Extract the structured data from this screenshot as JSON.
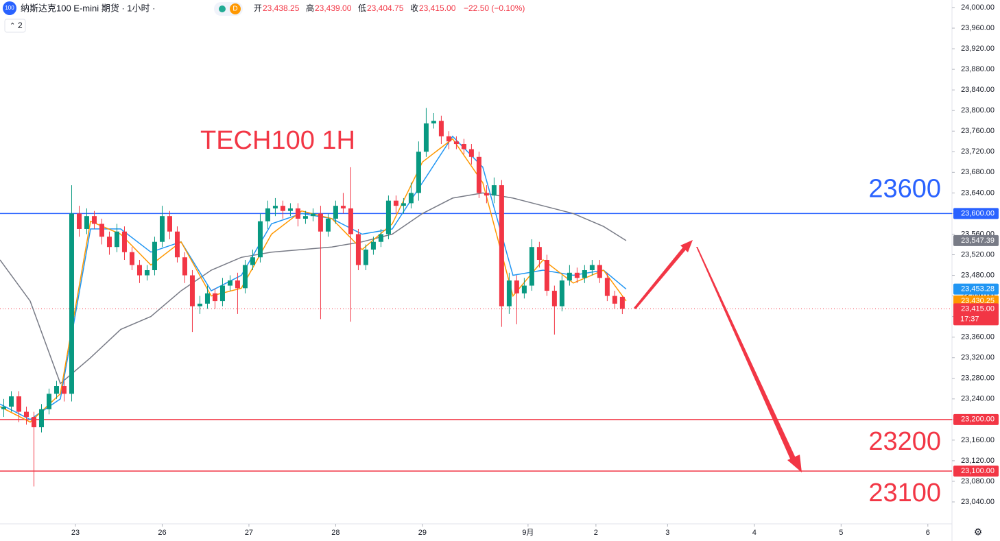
{
  "header": {
    "logo": "100",
    "title": "纳斯达克100 E-mini 期货 · 1小时 ·",
    "badge": "D",
    "ohlc": [
      {
        "key": "开",
        "value": "23,438.25"
      },
      {
        "key": "高",
        "value": "23,439.00"
      },
      {
        "key": "低",
        "value": "23,404.75"
      },
      {
        "key": "收",
        "value": "23,415.00"
      }
    ],
    "change": "−22.50 (−0.10%)",
    "indicators": "2"
  },
  "chart_data": {
    "type": "candlestick",
    "title": "TECH100 1H",
    "up_color": "#089981",
    "down_color": "#f23645",
    "x": [
      1,
      3,
      5,
      7,
      9,
      11,
      13,
      15,
      17,
      19,
      21,
      23,
      25,
      27,
      29,
      31,
      33,
      35,
      37,
      39,
      41,
      43,
      45,
      47,
      49,
      51,
      53,
      55,
      57,
      59,
      61,
      63,
      65,
      67,
      69,
      71,
      73,
      75,
      77,
      79,
      81,
      83,
      85,
      87,
      89,
      91,
      93,
      95,
      97,
      99,
      101,
      103,
      105,
      107,
      109,
      111,
      113,
      115,
      117,
      119,
      121,
      123,
      125,
      127,
      129,
      131,
      133,
      135,
      137,
      139,
      141,
      143,
      145,
      147,
      149,
      151,
      153,
      155,
      157,
      159,
      161,
      163,
      165
    ],
    "open": [
      23220,
      23225,
      23245,
      23215,
      23205,
      23185,
      23220,
      23250,
      23265,
      23250,
      23600,
      23570,
      23595,
      23580,
      23555,
      23535,
      23565,
      23525,
      23500,
      23480,
      23490,
      23545,
      23595,
      23565,
      23515,
      23480,
      23420,
      23425,
      23445,
      23430,
      23460,
      23470,
      23455,
      23500,
      23515,
      23585,
      23610,
      23615,
      23605,
      23610,
      23590,
      23595,
      23600,
      23565,
      23590,
      23615,
      23610,
      23560,
      23500,
      23530,
      23545,
      23560,
      23625,
      23615,
      23620,
      23640,
      23720,
      23775,
      23780,
      23750,
      23740,
      23735,
      23725,
      23710,
      23640,
      23635,
      23655,
      23420,
      23470,
      23445,
      23460,
      23535,
      23510,
      23450,
      23420,
      23470,
      23485,
      23475,
      23490,
      23500,
      23475,
      23440,
      23438.25
    ],
    "high": [
      23240,
      23255,
      23255,
      23225,
      23215,
      23230,
      23260,
      23275,
      23275,
      23655,
      23615,
      23610,
      23605,
      23590,
      23565,
      23580,
      23575,
      23535,
      23510,
      23500,
      23555,
      23615,
      23605,
      23575,
      23525,
      23490,
      23440,
      23460,
      23455,
      23475,
      23480,
      23485,
      23510,
      23530,
      23600,
      23625,
      23630,
      23625,
      23620,
      23620,
      23605,
      23610,
      23615,
      23600,
      23625,
      23640,
      23690,
      23570,
      23540,
      23555,
      23570,
      23635,
      23635,
      23630,
      23660,
      23740,
      23805,
      23795,
      23790,
      23760,
      23750,
      23745,
      23735,
      23720,
      23655,
      23670,
      23665,
      23485,
      23480,
      23475,
      23550,
      23545,
      23520,
      23460,
      23480,
      23500,
      23495,
      23500,
      23510,
      23510,
      23485,
      23450,
      23439
    ],
    "low": [
      23205,
      23215,
      23195,
      23190,
      23070,
      23175,
      23210,
      23240,
      23235,
      23235,
      23555,
      23560,
      23570,
      23540,
      23520,
      23525,
      23510,
      23490,
      23465,
      23470,
      23480,
      23535,
      23550,
      23505,
      23465,
      23370,
      23405,
      23415,
      23415,
      23420,
      23450,
      23405,
      23445,
      23490,
      23505,
      23570,
      23595,
      23590,
      23595,
      23575,
      23580,
      23585,
      23395,
      23555,
      23580,
      23600,
      23390,
      23490,
      23490,
      23520,
      23535,
      23550,
      23600,
      23600,
      23610,
      23625,
      23710,
      23765,
      23735,
      23725,
      23725,
      23715,
      23695,
      23630,
      23620,
      23620,
      23380,
      23405,
      23385,
      23435,
      23450,
      23495,
      23440,
      23365,
      23410,
      23460,
      23465,
      23465,
      23480,
      23465,
      23430,
      23415,
      23404.75
    ],
    "close": [
      23225,
      23245,
      23215,
      23205,
      23185,
      23220,
      23250,
      23265,
      23250,
      23600,
      23570,
      23595,
      23580,
      23555,
      23535,
      23565,
      23525,
      23500,
      23480,
      23490,
      23545,
      23595,
      23565,
      23515,
      23480,
      23420,
      23425,
      23445,
      23430,
      23460,
      23470,
      23455,
      23500,
      23515,
      23585,
      23610,
      23615,
      23605,
      23610,
      23590,
      23595,
      23600,
      23565,
      23590,
      23615,
      23610,
      23560,
      23500,
      23530,
      23545,
      23560,
      23625,
      23615,
      23620,
      23640,
      23720,
      23775,
      23780,
      23750,
      23740,
      23735,
      23725,
      23710,
      23640,
      23635,
      23655,
      23420,
      23470,
      23445,
      23460,
      23535,
      23510,
      23450,
      23420,
      23470,
      23485,
      23475,
      23490,
      23500,
      23475,
      23440,
      23425,
      23415
    ],
    "ma_x": [
      0,
      8,
      16,
      24,
      32,
      40,
      48,
      56,
      64,
      72,
      80,
      88,
      96,
      104,
      112,
      120,
      128,
      136,
      144,
      152,
      160,
      166
    ],
    "ma": [
      {
        "color": "#787b86",
        "values": [
          23510,
          23430,
          23270,
          23320,
          23375,
          23400,
          23450,
          23490,
          23515,
          23525,
          23530,
          23535,
          23545,
          23560,
          23600,
          23630,
          23640,
          23630,
          23615,
          23600,
          23575,
          23547.39
        ]
      },
      {
        "color": "#2196f3",
        "values": [
          23230,
          23200,
          23240,
          23570,
          23570,
          23525,
          23545,
          23450,
          23480,
          23580,
          23600,
          23590,
          23560,
          23570,
          23660,
          23750,
          23690,
          23480,
          23490,
          23480,
          23490,
          23453.28
        ]
      },
      {
        "color": "#ff9800",
        "values": [
          23225,
          23195,
          23250,
          23585,
          23560,
          23500,
          23545,
          23440,
          23455,
          23560,
          23605,
          23590,
          23530,
          23580,
          23700,
          23745,
          23660,
          23440,
          23510,
          23465,
          23490,
          23430.25
        ]
      }
    ],
    "hlines": [
      {
        "value": 23600,
        "label": "23,600.00",
        "color": "#2962ff"
      },
      {
        "value": 23200,
        "label": "23,200.00",
        "color": "#f23645"
      },
      {
        "value": 23100,
        "label": "23,100.00",
        "color": "#f23645"
      }
    ],
    "price_tags": [
      {
        "value": 23547.39,
        "label": "23,547.39",
        "color": "#787b86"
      },
      {
        "value": 23453.28,
        "label": "23,453.28",
        "color": "#2196f3"
      },
      {
        "value": 23430.25,
        "label": "23,430.25",
        "color": "#ff9800"
      }
    ],
    "last": {
      "value": 23415,
      "label": "23,415.00",
      "countdown": "17:37",
      "color": "#f23645"
    },
    "xlim": [
      0,
      252.4
    ],
    "xticks": [
      {
        "value": 20,
        "label": "23"
      },
      {
        "value": 43,
        "label": "26"
      },
      {
        "value": 66,
        "label": "27"
      },
      {
        "value": 89,
        "label": "28"
      },
      {
        "value": 112,
        "label": "29"
      },
      {
        "value": 140,
        "label": "9月"
      },
      {
        "value": 158,
        "label": "2"
      },
      {
        "value": 177,
        "label": "3"
      },
      {
        "value": 200,
        "label": "4"
      },
      {
        "value": 223,
        "label": "5"
      },
      {
        "value": 246,
        "label": "6"
      }
    ],
    "ylim": [
      23025.35,
      24000
    ],
    "yticks": [
      {
        "value": 24000,
        "label": "24,000.00"
      },
      {
        "value": 23960,
        "label": "23,960.00"
      },
      {
        "value": 23920,
        "label": "23,920.00"
      },
      {
        "value": 23880,
        "label": "23,880.00"
      },
      {
        "value": 23840,
        "label": "23,840.00"
      },
      {
        "value": 23800,
        "label": "23,800.00"
      },
      {
        "value": 23760,
        "label": "23,760.00"
      },
      {
        "value": 23720,
        "label": "23,720.00"
      },
      {
        "value": 23680,
        "label": "23,680.00"
      },
      {
        "value": 23640,
        "label": "23,640.00"
      },
      {
        "value": 23600,
        "label": "23,600.00"
      },
      {
        "value": 23560,
        "label": "23,560.00"
      },
      {
        "value": 23520,
        "label": "23,520.00"
      },
      {
        "value": 23480,
        "label": "23,480.00"
      },
      {
        "value": 23440,
        "label": "23,440.00"
      },
      {
        "value": 23400,
        "label": "23,400.00"
      },
      {
        "value": 23360,
        "label": "23,360.00"
      },
      {
        "value": 23320,
        "label": "23,320.00"
      },
      {
        "value": 23280,
        "label": "23,280.00"
      },
      {
        "value": 23240,
        "label": "23,240.00"
      },
      {
        "value": 23200,
        "label": "23,200.00"
      },
      {
        "value": 23160,
        "label": "23,160.00"
      },
      {
        "value": 23120,
        "label": "23,120.00"
      },
      {
        "value": 23080,
        "label": "23,080.00"
      },
      {
        "value": 23040,
        "label": "23,040.00"
      }
    ]
  }
}
